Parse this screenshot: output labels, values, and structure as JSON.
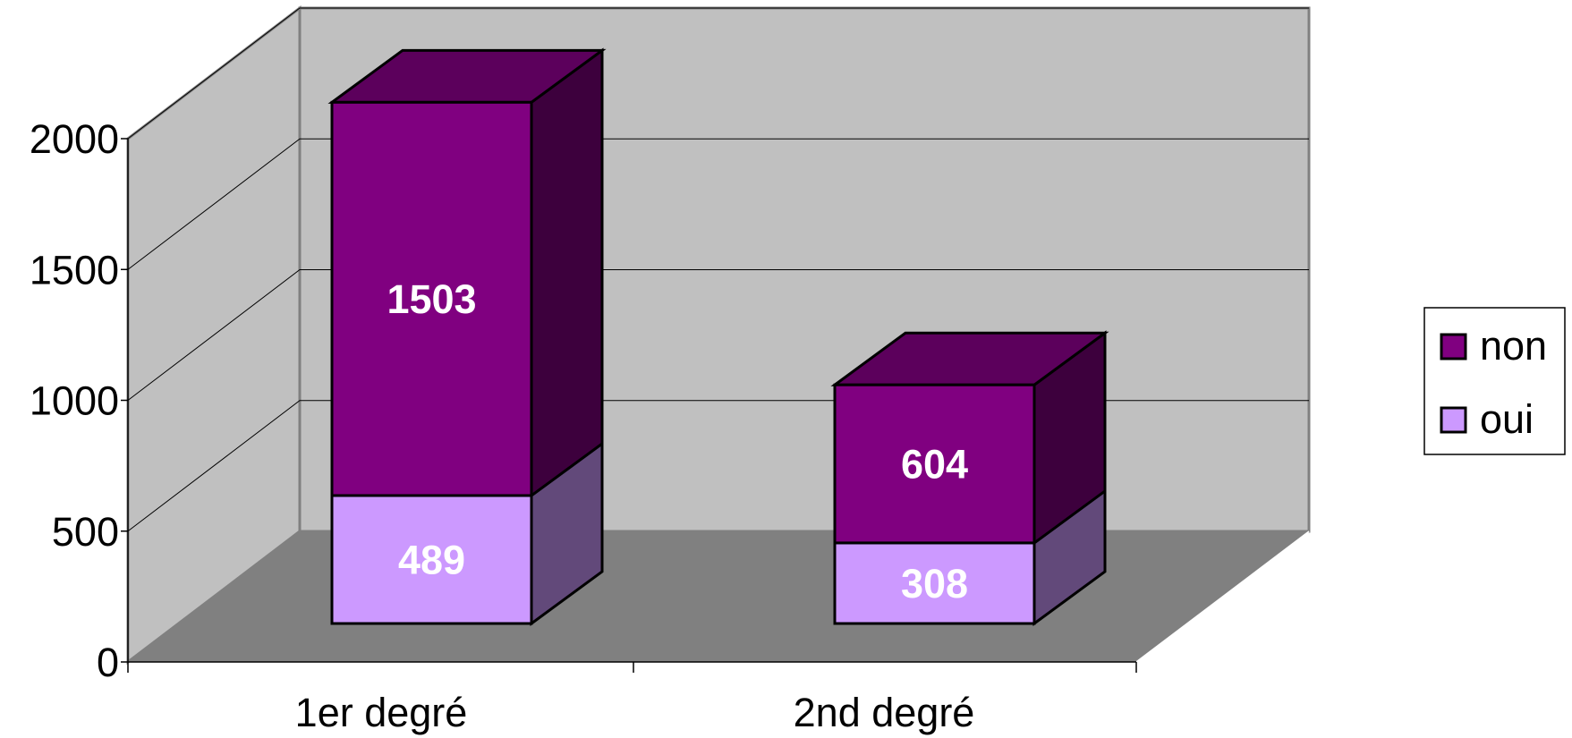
{
  "chart_data": {
    "type": "bar",
    "stacked": true,
    "three_d": true,
    "categories": [
      "1er degré",
      "2nd degré"
    ],
    "series": [
      {
        "name": "oui",
        "values": [
          489,
          308
        ],
        "color": "#cc99ff"
      },
      {
        "name": "non",
        "values": [
          1503,
          604
        ],
        "color": "#800080"
      }
    ],
    "y_ticks": [
      "0",
      "500",
      "1000",
      "1500",
      "2000"
    ],
    "ylim": [
      0,
      2000
    ],
    "grid": true,
    "legend": "right",
    "colors": {
      "back_wall": "#c0c0c0",
      "side_wall": "#c0c0c0",
      "floor": "#808080"
    }
  }
}
